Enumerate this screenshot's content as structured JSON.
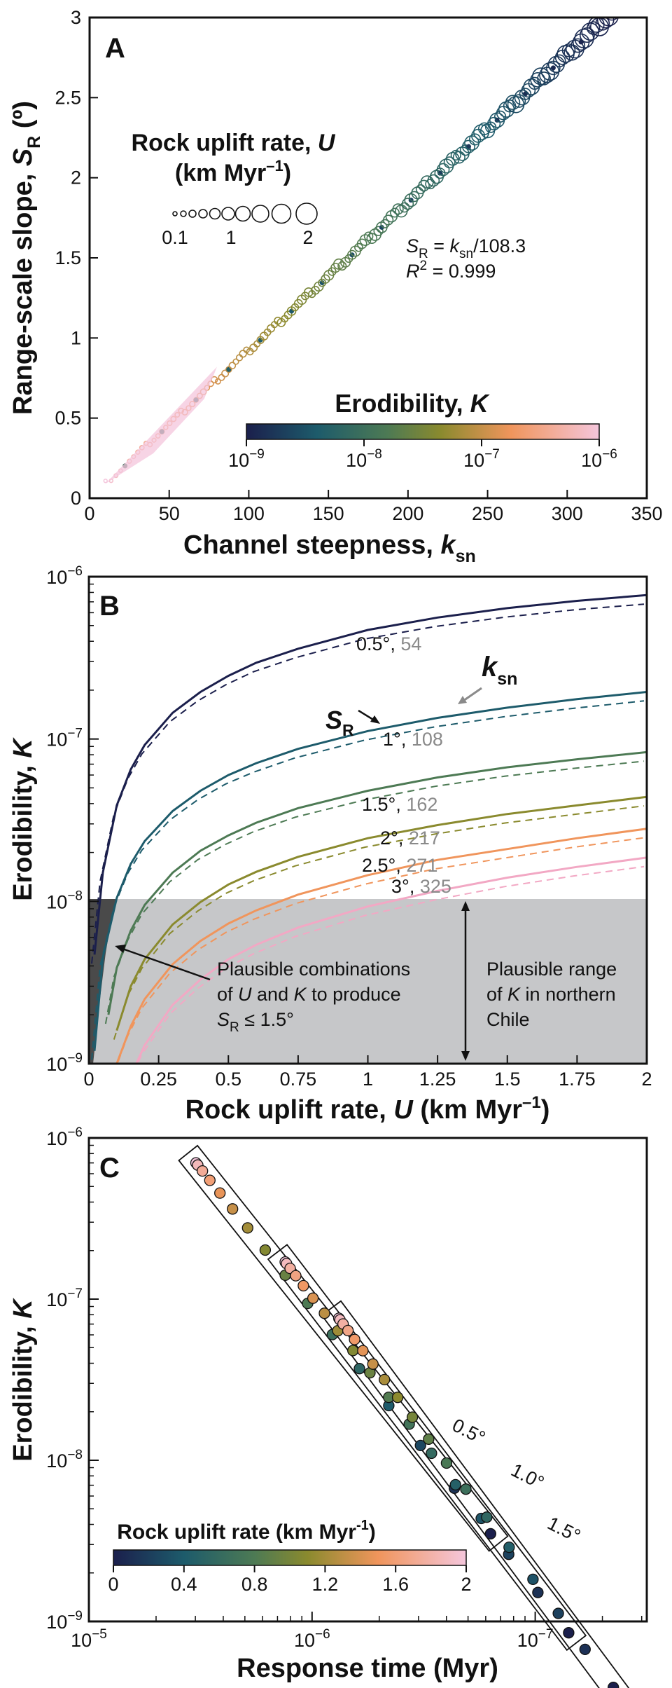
{
  "figure": {
    "panels": [
      {
        "id": "A",
        "xlabel": {
          "main": "Channel steepness, ",
          "var": "k",
          "sub": "sn"
        },
        "ylabel": {
          "main": "Range-scale slope, ",
          "var": "S",
          "sub": "R",
          "unit": " (º)"
        },
        "size_legend": {
          "title1": "Rock uplift rate, ",
          "title_var": "U",
          "title2_a": "(km Myr",
          "title2_sup": "–1",
          "title2_b": ")",
          "labels": [
            "0.1",
            "1",
            "2"
          ]
        },
        "equation": {
          "lhs_var": "S",
          "lhs_sub": "R",
          "eq_mid": " = ",
          "rhs_var": "k",
          "rhs_sub": "sn",
          "rhs_tail": "/108.3",
          "r2_var": "R",
          "r2_sup": "2",
          "r2_tail": " = 0.999"
        },
        "colorbar": {
          "title": "Erodibility, ",
          "title_var": "K",
          "tick_base": "10",
          "tick_exps": [
            "−9",
            "−8",
            "−7",
            "−6"
          ]
        }
      },
      {
        "id": "B",
        "xlabel": {
          "main": "Rock uplift rate, ",
          "var": "U",
          "unit_a": " (km Myr",
          "unit_sup": "–1",
          "unit_b": ")"
        },
        "ylabel": {
          "main": "Erodibility, ",
          "var": "K"
        },
        "curve_labels": [
          {
            "sr": "0.5°",
            "ksn": "54"
          },
          {
            "sr": "1°",
            "ksn": "108"
          },
          {
            "sr": "1.5°",
            "ksn": "162"
          },
          {
            "sr": "2°",
            "ksn": "217"
          },
          {
            "sr": "2.5°",
            "ksn": "271"
          },
          {
            "sr": "3°",
            "ksn": "325"
          }
        ],
        "sr_pointer": {
          "var": "S",
          "sub": "R"
        },
        "ksn_pointer": {
          "var": "k",
          "sub": "sn"
        },
        "plausible_combo": {
          "line1": "Plausible combinations",
          "line2_a": "of ",
          "line2_u": "U",
          "line2_b": " and ",
          "line2_k": "K",
          "line2_c": " to produce",
          "line3_var": "S",
          "line3_sub": "R",
          "line3_tail": " ≤ 1.5°"
        },
        "plausible_range": {
          "line1": "Plausible range",
          "line2_a": "of ",
          "line2_k": "K",
          "line2_b": " in northern",
          "line3": "Chile"
        }
      },
      {
        "id": "C",
        "xlabel": "Response time (Myr)",
        "ylabel": {
          "main": "Erodibility, ",
          "var": "K"
        },
        "group_labels": [
          "0.5°",
          "1.0°",
          "1.5°"
        ],
        "colorbar": {
          "title_a": "Rock uplift rate (km Myr",
          "title_sup": "-1",
          "title_b": ")",
          "ticks": [
            "0",
            "0.4",
            "0.8",
            "1.2",
            "1.6",
            "2"
          ]
        }
      }
    ],
    "colors": {
      "navy": "#1b1f4c",
      "teal": "#1d5b6b",
      "green": "#4d7a54",
      "olive": "#8a8a2e",
      "orange": "#f0955c",
      "pink": "#f2a8c4",
      "shade_light": "#c6c7c9",
      "shade_dark": "#4a4a4a"
    }
  },
  "chart_data": [
    {
      "panel": "A",
      "type": "scatter",
      "xlabel": "Channel steepness, ksn",
      "ylabel": "Range-scale slope, SR (º)",
      "xlim": [
        0,
        350
      ],
      "ylim": [
        0,
        3
      ],
      "xticks": [
        "0",
        "50",
        "100",
        "150",
        "200",
        "250",
        "300",
        "350"
      ],
      "yticks": [
        "0",
        "0.5",
        "1",
        "1.5",
        "2",
        "2.5",
        "3"
      ],
      "fit": {
        "slope": 0.009234,
        "r2": 0.999
      },
      "x_range_of_points": [
        10,
        328
      ],
      "size_encoding": "Rock uplift rate U (km Myr–1), 0.1 to 2",
      "color_encoding": "Erodibility K, 1e-9 to 1e-6 (log)"
    },
    {
      "panel": "B",
      "type": "line",
      "xlabel": "Rock uplift rate, U (km Myr–1)",
      "ylabel": "Erodibility, K",
      "xlim": [
        0,
        2
      ],
      "ylim": [
        1e-09,
        1e-06
      ],
      "yscale": "log",
      "xticks": [
        "0",
        "0.25",
        "0.5",
        "0.75",
        "1",
        "1.25",
        "1.5",
        "1.75",
        "2"
      ],
      "series": [
        {
          "name": "0.5°, 54",
          "x": [
            0.02,
            0.05,
            0.1,
            0.15,
            0.2,
            0.3,
            0.4,
            0.5,
            0.6,
            0.75,
            1.0,
            1.25,
            1.5,
            1.75,
            2.0
          ],
          "values": [
            4.7e-09,
            1.5e-08,
            3.9e-08,
            6.5e-08,
            9.2e-08,
            1.45e-07,
            1.95e-07,
            2.45e-07,
            2.95e-07,
            3.6e-07,
            4.7e-07,
            5.6e-07,
            6.4e-07,
            7.1e-07,
            7.7e-07
          ]
        },
        {
          "name": "1°, 108",
          "x": [
            0.02,
            0.05,
            0.1,
            0.15,
            0.2,
            0.3,
            0.4,
            0.5,
            0.6,
            0.75,
            1.0,
            1.25,
            1.5,
            1.75,
            2.0
          ],
          "values": [
            1.2e-09,
            4.5e-09,
            1.05e-08,
            1.7e-08,
            2.35e-08,
            3.6e-08,
            4.8e-08,
            6e-08,
            7.1e-08,
            8.7e-08,
            1.12e-07,
            1.35e-07,
            1.56e-07,
            1.76e-07,
            1.95e-07
          ]
        },
        {
          "name": "1.5°, 162",
          "x": [
            0.07,
            0.1,
            0.15,
            0.2,
            0.3,
            0.4,
            0.5,
            0.6,
            0.75,
            1.0,
            1.25,
            1.5,
            1.75,
            2.0
          ],
          "values": [
            2e-09,
            3.9e-09,
            6.6e-09,
            9.5e-09,
            1.5e-08,
            2.05e-08,
            2.55e-08,
            3.05e-08,
            3.75e-08,
            4.8e-08,
            5.8e-08,
            6.7e-08,
            7.5e-08,
            8.3e-08
          ]
        },
        {
          "name": "2°, 217",
          "x": [
            0.1,
            0.15,
            0.2,
            0.3,
            0.4,
            0.5,
            0.6,
            0.75,
            1.0,
            1.25,
            1.5,
            1.75,
            2.0
          ],
          "values": [
            1.6e-09,
            3e-09,
            4.4e-09,
            7.2e-09,
            9.9e-09,
            1.27e-08,
            1.52e-08,
            1.88e-08,
            2.45e-08,
            2.95e-08,
            3.45e-08,
            3.9e-08,
            4.4e-08
          ]
        },
        {
          "name": "2.5°, 271",
          "x": [
            0.1,
            0.15,
            0.2,
            0.3,
            0.4,
            0.5,
            0.6,
            0.75,
            1.0,
            1.25,
            1.5,
            1.75,
            2.0
          ],
          "values": [
            1e-09,
            1.7e-09,
            2.5e-09,
            4.1e-09,
            5.7e-09,
            7.3e-09,
            8.8e-09,
            1.1e-08,
            1.45e-08,
            1.8e-08,
            2.1e-08,
            2.45e-08,
            2.8e-08
          ]
        },
        {
          "name": "3°, 325",
          "x": [
            0.17,
            0.2,
            0.3,
            0.4,
            0.5,
            0.6,
            0.75,
            1.0,
            1.25,
            1.5,
            1.75,
            2.0
          ],
          "values": [
            1e-09,
            1.3e-09,
            2.3e-09,
            3.3e-09,
            4.4e-09,
            5.4e-09,
            6.9e-09,
            9.3e-09,
            1.16e-08,
            1.4e-08,
            1.63e-08,
            1.86e-08
          ]
        }
      ],
      "shaded_region": {
        "ymin": 1e-09,
        "ymax": 1e-08
      }
    },
    {
      "panel": "C",
      "type": "scatter",
      "xlabel": "Response time (Myr)",
      "ylabel": "Erodibility, K",
      "xscale": "log",
      "yscale": "log",
      "xlim_exp": [
        -5,
        -7.5
      ],
      "ylim": [
        1e-09,
        1e-06
      ],
      "xticks": [
        "10−5",
        "10−6",
        "10−7"
      ],
      "yticks": [
        "10−9",
        "10−8",
        "10−7",
        "10−6"
      ],
      "series": [
        {
          "name": "0.5°",
          "log_x_range": [
            -5.48,
            -6.8
          ],
          "k_range": [
            7e-07,
            3.5e-09
          ],
          "n_points": 16
        },
        {
          "name": "1.0°",
          "log_x_range": [
            -5.88,
            -7.15
          ],
          "k_range": [
            1.7e-07,
            8.5e-10
          ],
          "n_points": 18
        },
        {
          "name": "1.5°",
          "log_x_range": [
            -6.12,
            -7.35
          ],
          "k_range": [
            7.6e-08,
            3.9e-10
          ],
          "n_points": 19
        }
      ],
      "color_encoding": "Rock uplift rate (km Myr-1), 0 to 2"
    }
  ]
}
